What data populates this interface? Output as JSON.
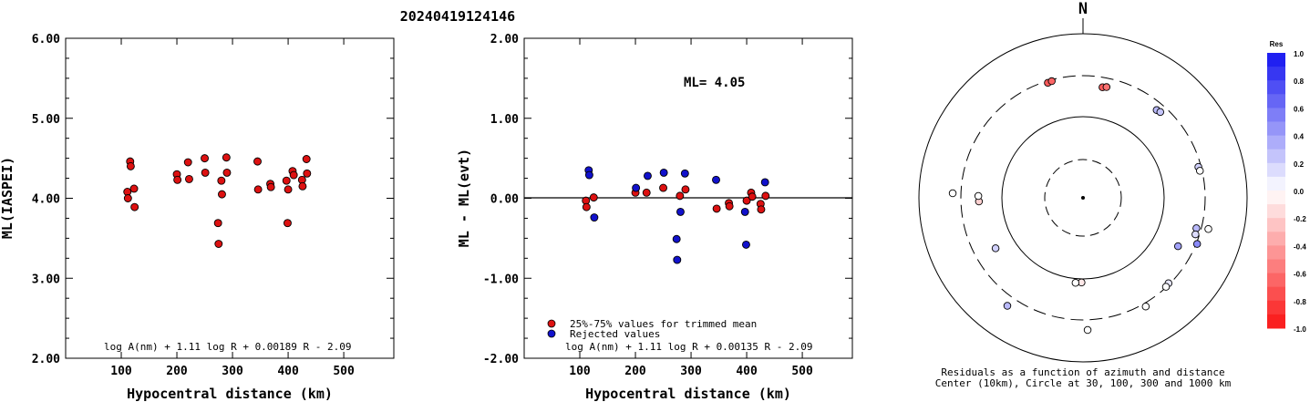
{
  "page_title": "20240419124146",
  "colors": {
    "red": "#dd1111",
    "blue": "#1111cc",
    "axis": "#000000"
  },
  "chart_data": [
    {
      "type": "scatter",
      "id": "left",
      "xlabel": "Hypocentral distance (km)",
      "ylabel": "ML(IASPEI)",
      "xlim": [
        0,
        590
      ],
      "ylim": [
        2.0,
        6.0
      ],
      "xticks": [
        "100",
        "200",
        "300",
        "400",
        "500"
      ],
      "yticks": [
        "2.00",
        "3.00",
        "4.00",
        "5.00",
        "6.00"
      ],
      "formula": "log A(nm) + 1.11 log R + 0.00189 R - 2.09",
      "series": [
        {
          "color": "red",
          "points": [
            [
              111,
              4.08
            ],
            [
              112,
              4.0
            ],
            [
              116,
              4.46
            ],
            [
              117,
              4.4
            ],
            [
              123,
              4.12
            ],
            [
              124,
              3.89
            ],
            [
              200,
              4.3
            ],
            [
              201,
              4.23
            ],
            [
              220,
              4.45
            ],
            [
              222,
              4.24
            ],
            [
              250,
              4.5
            ],
            [
              251,
              4.32
            ],
            [
              274,
              3.69
            ],
            [
              275,
              3.43
            ],
            [
              280,
              4.22
            ],
            [
              281,
              4.05
            ],
            [
              289,
              4.51
            ],
            [
              290,
              4.32
            ],
            [
              345,
              4.46
            ],
            [
              346,
              4.11
            ],
            [
              368,
              4.18
            ],
            [
              369,
              4.14
            ],
            [
              397,
              4.22
            ],
            [
              399,
              3.69
            ],
            [
              400,
              4.11
            ],
            [
              408,
              4.34
            ],
            [
              410,
              4.29
            ],
            [
              425,
              4.23
            ],
            [
              426,
              4.15
            ],
            [
              433,
              4.49
            ],
            [
              434,
              4.31
            ]
          ]
        }
      ]
    },
    {
      "type": "scatter",
      "id": "middle",
      "xlabel": "Hypocentral distance (km)",
      "ylabel": "ML - ML(evt)",
      "xlim": [
        0,
        590
      ],
      "ylim": [
        -2.0,
        2.0
      ],
      "xticks": [
        "100",
        "200",
        "300",
        "400",
        "500"
      ],
      "yticks": [
        "-2.00",
        "-1.00",
        "0.00",
        "1.00",
        "2.00"
      ],
      "annotation": "ML= 4.05",
      "formula": "log A(nm) + 1.11 log R + 0.00135 R - 2.09",
      "legend": [
        {
          "label": "25%-75% values for trimmed mean",
          "color": "red"
        },
        {
          "label": "Rejected values",
          "color": "blue"
        }
      ],
      "series": [
        {
          "color": "red",
          "points": [
            [
              111,
              -0.03
            ],
            [
              112,
              -0.11
            ],
            [
              125,
              0.01
            ],
            [
              200,
              0.07
            ],
            [
              220,
              0.07
            ],
            [
              250,
              0.13
            ],
            [
              280,
              0.03
            ],
            [
              290,
              0.11
            ],
            [
              346,
              -0.13
            ],
            [
              368,
              -0.06
            ],
            [
              369,
              -0.1
            ],
            [
              400,
              -0.03
            ],
            [
              408,
              0.07
            ],
            [
              410,
              0.02
            ],
            [
              425,
              -0.07
            ],
            [
              426,
              -0.14
            ],
            [
              434,
              0.03
            ]
          ]
        },
        {
          "color": "blue",
          "points": [
            [
              116,
              0.35
            ],
            [
              117,
              0.29
            ],
            [
              126,
              -0.24
            ],
            [
              201,
              0.13
            ],
            [
              222,
              0.28
            ],
            [
              251,
              0.32
            ],
            [
              274,
              -0.51
            ],
            [
              275,
              -0.77
            ],
            [
              281,
              -0.17
            ],
            [
              289,
              0.31
            ],
            [
              345,
              0.23
            ],
            [
              397,
              -0.17
            ],
            [
              399,
              -0.58
            ],
            [
              433,
              0.2
            ]
          ]
        }
      ]
    },
    {
      "type": "polar-scatter",
      "id": "residual-map",
      "north_label": "N",
      "caption_line1": "Residuals as a function of azimuth and distance",
      "caption_line2": "Center (10km), Circle at 30, 100, 300 and 1000 km",
      "rings_km": [
        30,
        100,
        300,
        1000
      ],
      "points": [
        {
          "az": 10,
          "dist": 230,
          "res": -0.7
        },
        {
          "az": 12,
          "dist": 236,
          "res": -0.6
        },
        {
          "az": 343,
          "dist": 285,
          "res": -0.7
        },
        {
          "az": 345,
          "dist": 289,
          "res": -0.65
        },
        {
          "az": 40,
          "dist": 245,
          "res": 0.3
        },
        {
          "az": 42,
          "dist": 251,
          "res": 0.25
        },
        {
          "az": 75,
          "dist": 279,
          "res": 0.2
        },
        {
          "az": 77,
          "dist": 283,
          "res": 0.0
        },
        {
          "az": 105,
          "dist": 264,
          "res": 0.3
        },
        {
          "az": 108,
          "dist": 270,
          "res": 0.15
        },
        {
          "az": 112,
          "dist": 308,
          "res": 0.5
        },
        {
          "az": 104,
          "dist": 367,
          "res": 0.0
        },
        {
          "az": 117,
          "dist": 198,
          "res": 0.4
        },
        {
          "az": 135,
          "dist": 290,
          "res": 0.1
        },
        {
          "az": 137,
          "dist": 296,
          "res": 0.0
        },
        {
          "az": 150,
          "dist": 330,
          "res": 0.0
        },
        {
          "az": 181,
          "dist": 110,
          "res": -0.1
        },
        {
          "az": 185,
          "dist": 112,
          "res": 0.0
        },
        {
          "az": 178,
          "dist": 401,
          "res": 0.0
        },
        {
          "az": 215,
          "dist": 397,
          "res": 0.3
        },
        {
          "az": 240,
          "dist": 170,
          "res": 0.2
        },
        {
          "az": 268,
          "dist": 185,
          "res": -0.2
        },
        {
          "az": 271,
          "dist": 188,
          "res": 0.0
        },
        {
          "az": 272,
          "dist": 380,
          "res": 0.0
        }
      ]
    }
  ],
  "colorbar": {
    "title": "Res",
    "labels": [
      "1.0",
      "0.8",
      "0.6",
      "0.4",
      "0.2",
      "0.0",
      "-0.2",
      "-0.4",
      "-0.6",
      "-0.8",
      "-1.0"
    ]
  }
}
